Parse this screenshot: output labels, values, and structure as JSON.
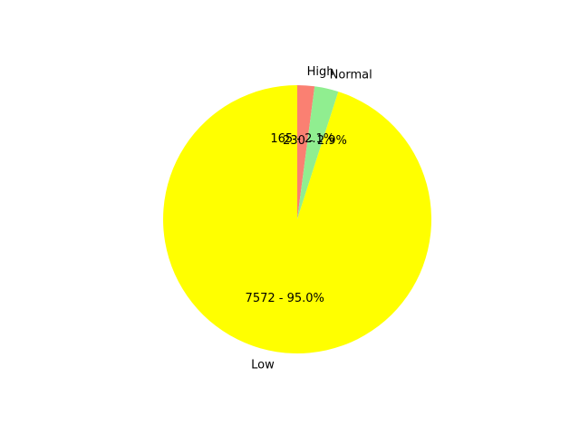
{
  "chart_data": {
    "type": "pie",
    "categories": [
      "High",
      "Normal",
      "Low"
    ],
    "values": [
      165,
      230,
      7572
    ],
    "percent_labels": [
      "165 - 2.1%",
      "230 - 2.9%",
      "7572 - 95.0%"
    ],
    "colors": [
      "#fa8072",
      "#90ee90",
      "#ffff00"
    ],
    "start_angle_deg": 90,
    "direction": "clockwise",
    "legend": "none"
  }
}
